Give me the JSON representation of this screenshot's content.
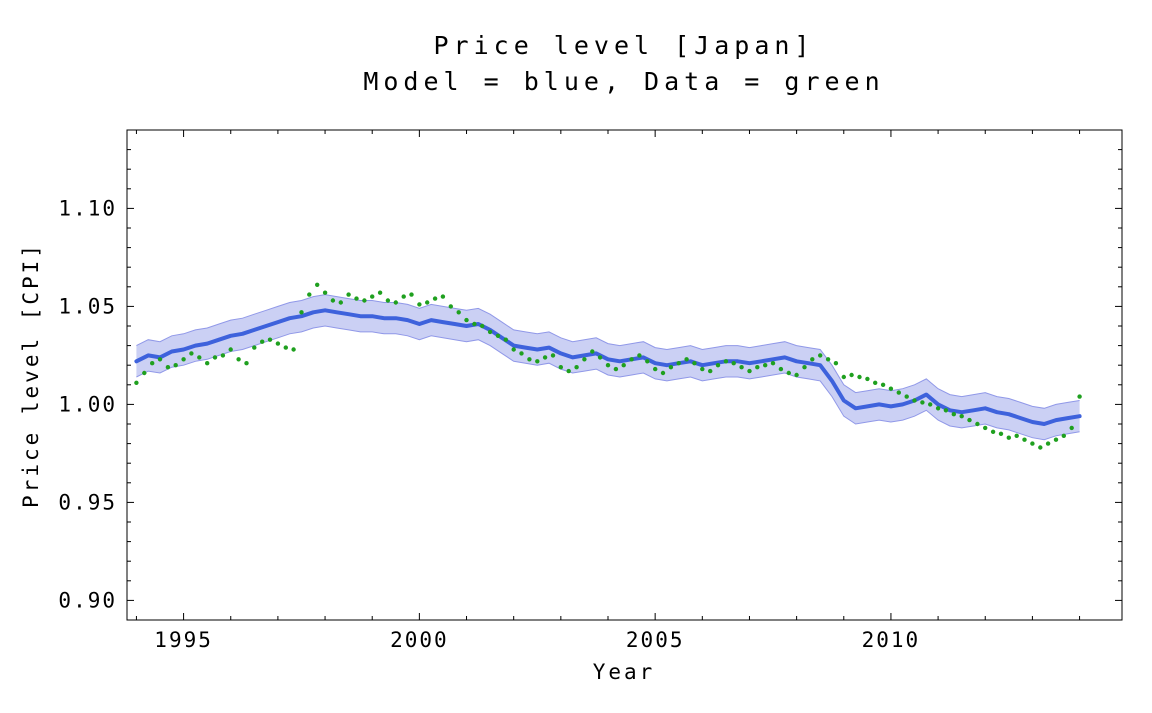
{
  "chart_data": {
    "type": "line",
    "title": "Price level [Japan]",
    "subtitle": "Model = blue, Data = green",
    "xlabel": "Year",
    "ylabel": "Price level [CPI]",
    "xlim": [
      1993.8,
      2014.9
    ],
    "ylim": [
      0.89,
      1.14
    ],
    "grid": false,
    "legend": "none",
    "frame": true,
    "background": "#ffffff",
    "x_major_ticks": [
      1995,
      2000,
      2005,
      2010
    ],
    "x_major_labels": [
      "1995",
      "2000",
      "2005",
      "2010"
    ],
    "x_minor_step": 1,
    "y_major_ticks": [
      0.9,
      0.95,
      1.0,
      1.05,
      1.1
    ],
    "y_major_labels": [
      "0.90",
      "0.95",
      "1.00",
      "1.05",
      "1.10"
    ],
    "y_minor_step": 0.01,
    "series": [
      {
        "name": "Model",
        "style": "line-with-band",
        "color": "#3E62DC",
        "band_fill": "#CBD0F4",
        "band_edge": "#9098E8",
        "band_halfwidth": 0.008,
        "x0": 1994.0,
        "dx": 0.25,
        "values": [
          1.022,
          1.025,
          1.024,
          1.027,
          1.028,
          1.03,
          1.031,
          1.033,
          1.035,
          1.036,
          1.038,
          1.04,
          1.042,
          1.044,
          1.045,
          1.047,
          1.048,
          1.047,
          1.046,
          1.045,
          1.045,
          1.044,
          1.044,
          1.043,
          1.041,
          1.043,
          1.042,
          1.041,
          1.04,
          1.041,
          1.038,
          1.034,
          1.03,
          1.029,
          1.028,
          1.029,
          1.026,
          1.024,
          1.025,
          1.026,
          1.023,
          1.022,
          1.023,
          1.024,
          1.021,
          1.02,
          1.021,
          1.022,
          1.02,
          1.021,
          1.022,
          1.022,
          1.021,
          1.022,
          1.023,
          1.024,
          1.022,
          1.021,
          1.02,
          1.012,
          1.002,
          0.998,
          0.999,
          1.0,
          0.999,
          1.0,
          1.002,
          1.005,
          1.0,
          0.997,
          0.996,
          0.997,
          0.998,
          0.996,
          0.995,
          0.993,
          0.991,
          0.99,
          0.992,
          0.993,
          0.994
        ]
      },
      {
        "name": "Data",
        "style": "scatter",
        "color": "#1FA01F",
        "x0": 1994.0,
        "dx": 0.1666667,
        "values": [
          1.011,
          1.016,
          1.021,
          1.023,
          1.019,
          1.02,
          1.023,
          1.026,
          1.024,
          1.021,
          1.024,
          1.025,
          1.028,
          1.023,
          1.021,
          1.029,
          1.032,
          1.033,
          1.031,
          1.029,
          1.028,
          1.047,
          1.056,
          1.061,
          1.057,
          1.053,
          1.052,
          1.056,
          1.054,
          1.053,
          1.055,
          1.057,
          1.053,
          1.052,
          1.055,
          1.056,
          1.051,
          1.052,
          1.054,
          1.055,
          1.05,
          1.047,
          1.043,
          1.041,
          1.04,
          1.037,
          1.035,
          1.033,
          1.028,
          1.026,
          1.023,
          1.022,
          1.024,
          1.025,
          1.019,
          1.017,
          1.019,
          1.023,
          1.027,
          1.024,
          1.02,
          1.018,
          1.02,
          1.023,
          1.025,
          1.022,
          1.018,
          1.016,
          1.019,
          1.021,
          1.023,
          1.021,
          1.018,
          1.017,
          1.02,
          1.022,
          1.021,
          1.019,
          1.017,
          1.019,
          1.02,
          1.021,
          1.018,
          1.016,
          1.015,
          1.019,
          1.023,
          1.025,
          1.023,
          1.021,
          1.014,
          1.015,
          1.014,
          1.013,
          1.011,
          1.01,
          1.008,
          1.006,
          1.004,
          1.002,
          1.001,
          1.0,
          0.998,
          0.997,
          0.995,
          0.994,
          0.992,
          0.99,
          0.988,
          0.986,
          0.985,
          0.983,
          0.984,
          0.982,
          0.98,
          0.978,
          0.98,
          0.982,
          0.984,
          0.988,
          1.004
        ]
      }
    ]
  }
}
